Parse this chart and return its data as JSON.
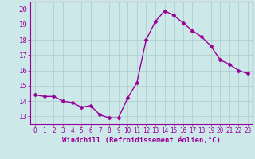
{
  "x": [
    0,
    1,
    2,
    3,
    4,
    5,
    6,
    7,
    8,
    9,
    10,
    11,
    12,
    13,
    14,
    15,
    16,
    17,
    18,
    19,
    20,
    21,
    22,
    23
  ],
  "y": [
    14.4,
    14.3,
    14.3,
    14.0,
    13.9,
    13.6,
    13.7,
    13.1,
    12.9,
    12.9,
    14.2,
    15.2,
    18.0,
    19.2,
    19.9,
    19.6,
    19.1,
    18.6,
    18.2,
    17.6,
    16.7,
    16.4,
    16.0,
    15.8
  ],
  "line_color": "#990099",
  "marker": "D",
  "markersize": 2.5,
  "linewidth": 1.0,
  "bg_color": "#cce8e8",
  "grid_color": "#aacccc",
  "xlabel": "Windchill (Refroidissement éolien,°C)",
  "xlabel_fontsize": 6.5,
  "xlabel_color": "#990099",
  "ytick_labels": [
    "13",
    "14",
    "15",
    "16",
    "17",
    "18",
    "19",
    "20"
  ],
  "yticks": [
    13,
    14,
    15,
    16,
    17,
    18,
    19,
    20
  ],
  "ylim": [
    12.5,
    20.5
  ],
  "xlim": [
    -0.5,
    23.5
  ],
  "xtick_fontsize": 5.5,
  "ytick_fontsize": 6.5
}
